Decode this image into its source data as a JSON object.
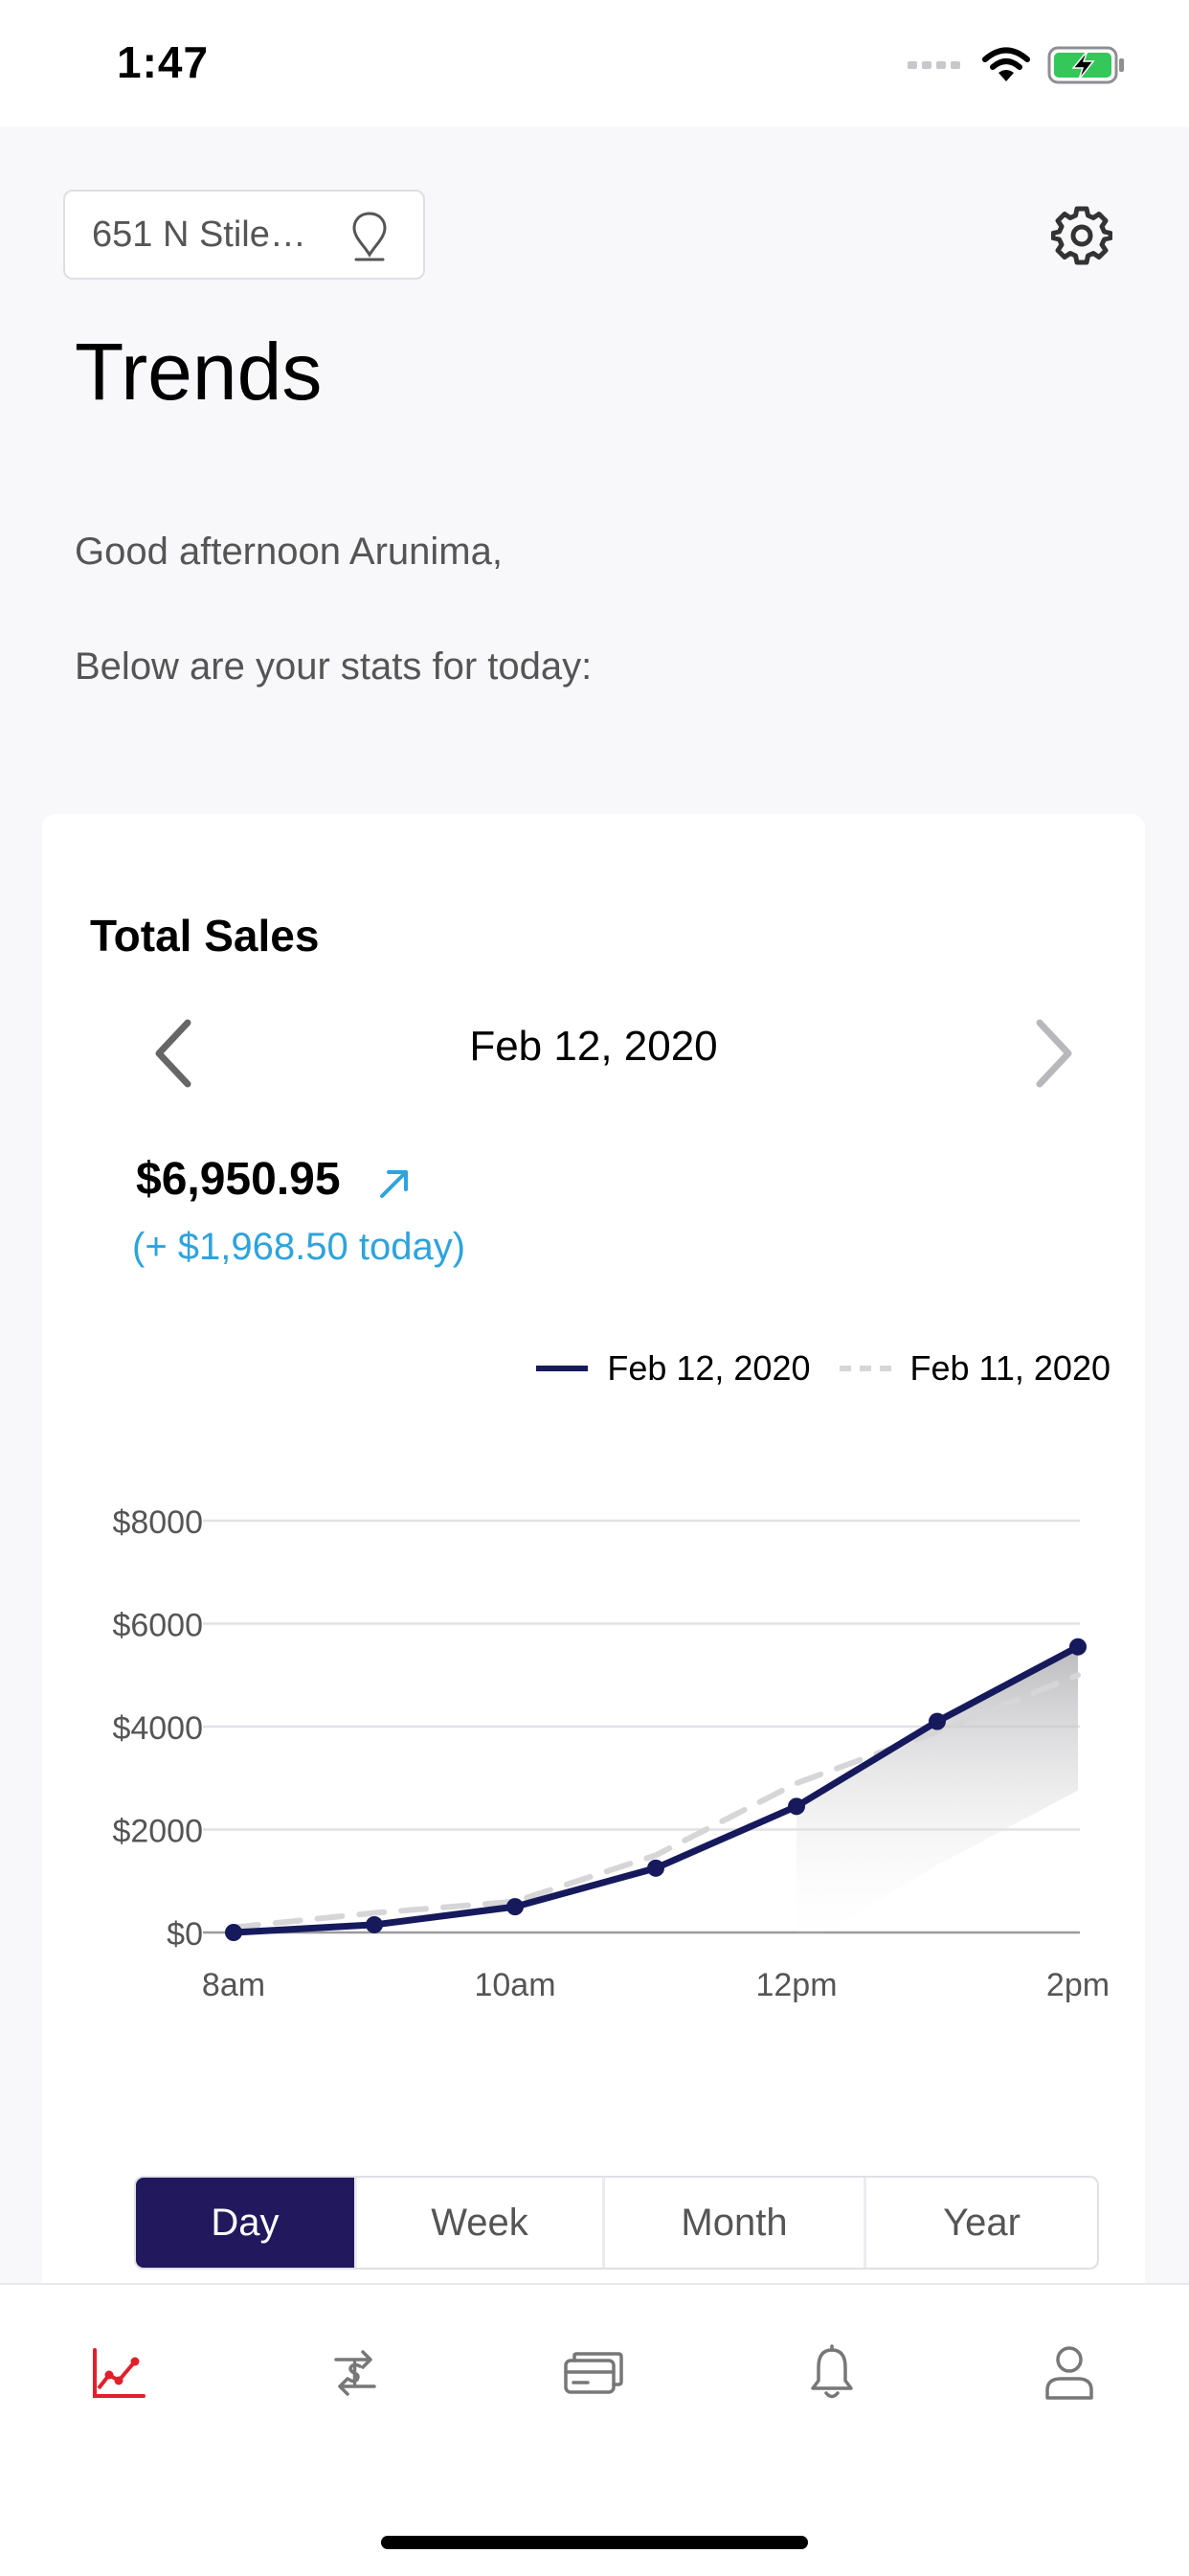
{
  "status_bar": {
    "time": "1:47"
  },
  "header": {
    "address": "651 N Stile…",
    "title": "Trends"
  },
  "greeting": {
    "line1": "Good afternoon Arunima,",
    "line2": "Below are your stats for today:"
  },
  "sales_card": {
    "title": "Total Sales",
    "date": "Feb 12, 2020",
    "total": "$6,950.95",
    "delta": "(+ $1,968.50 today)",
    "accent_color": "#2ea3dd"
  },
  "chart_data": {
    "type": "line",
    "x": [
      "8am",
      "9am",
      "10am",
      "11am",
      "12pm",
      "1pm",
      "2pm"
    ],
    "x_tick_labels": [
      "8am",
      "10am",
      "12pm",
      "2pm"
    ],
    "y_tick_labels": [
      "$8000",
      "$6000",
      "$4000",
      "$2000",
      "$0"
    ],
    "ylim": [
      0,
      8000
    ],
    "grid": true,
    "legend_position": "top-right",
    "series": [
      {
        "name": "Feb 12, 2020",
        "style": "solid",
        "color": "#161a5c",
        "values": [
          0,
          150,
          500,
          1250,
          2450,
          4100,
          5550
        ]
      },
      {
        "name": "Feb 11, 2020",
        "style": "dashed",
        "color": "#d6d6d9",
        "values": [
          100,
          380,
          600,
          1500,
          2900,
          3900,
          5000
        ]
      }
    ]
  },
  "range_selector": {
    "options": [
      "Day",
      "Week",
      "Month",
      "Year"
    ],
    "selected": "Day",
    "selected_color": "#21185e"
  },
  "tab_bar": {
    "items": [
      "trends-icon",
      "transfer-icon",
      "card-icon",
      "bell-icon",
      "profile-icon"
    ],
    "active": "trends-icon",
    "active_color": "#e0202a"
  }
}
